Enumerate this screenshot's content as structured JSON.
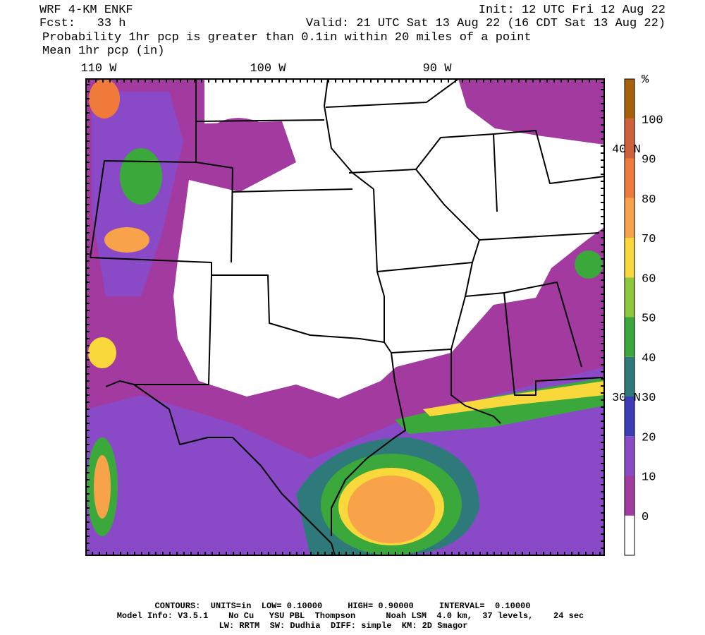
{
  "header": {
    "model": "WRF 4-KM ENKF",
    "forecast": "Fcst:   33 h",
    "init": "Init: 12 UTC Fri 12 Aug 22",
    "valid": "Valid: 21 UTC Sat 13 Aug 22 (16 CDT Sat 13 Aug 22)",
    "field": "Probability 1hr pcp is greater than 0.1in within 20 miles of a point",
    "contour_field": "Mean 1hr pcp (in)"
  },
  "map": {
    "longitude_labels": [
      "110 W",
      "100 W",
      "90 W"
    ],
    "latitude_labels": [
      "40 N",
      "30 N"
    ]
  },
  "colorbar": {
    "unit": "%",
    "levels": [
      0,
      10,
      20,
      30,
      40,
      50,
      60,
      70,
      80,
      90,
      100
    ],
    "colors": [
      "#ffffff",
      "#a33aa0",
      "#8a4ac8",
      "#3c3cb4",
      "#2e7a7a",
      "#3aa83a",
      "#8cc83a",
      "#f8d83a",
      "#f8a24a",
      "#f07a3a",
      "#d0603a",
      "#a8600a"
    ]
  },
  "footer": {
    "contours": "CONTOURS:  UNITS=in  LOW= 0.10000     HIGH= 0.90000     INTERVAL=  0.10000",
    "model_info": "Model Info: V3.5.1    No Cu   YSU PBL  Thompson      Noah LSM  4.0 km,  37 levels,    24 sec",
    "physics": "LW: RRTM  SW: Dudhia  DIFF: simple  KM: 2D Smagor"
  }
}
